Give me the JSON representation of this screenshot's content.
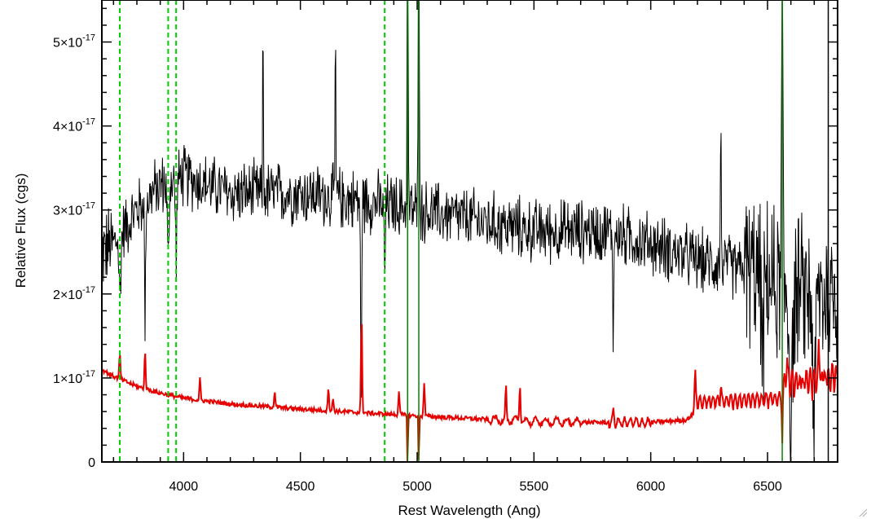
{
  "chart_data": {
    "type": "line",
    "title": "",
    "xlabel": "Rest Wavelength (Ang)",
    "ylabel": "Relative Flux (cgs)",
    "xlim": [
      3650,
      6800
    ],
    "ylim": [
      0,
      5.5e-17
    ],
    "x_ticks": [
      {
        "value": 4000,
        "label": "4000"
      },
      {
        "value": 4500,
        "label": "4500"
      },
      {
        "value": 5000,
        "label": "5000"
      },
      {
        "value": 5500,
        "label": "5500"
      },
      {
        "value": 6000,
        "label": "6000"
      },
      {
        "value": 6500,
        "label": "6500"
      }
    ],
    "y_ticks": [
      {
        "value": 0,
        "label": "0"
      },
      {
        "value": 1e-17,
        "label": "1×10",
        "exp": "-17"
      },
      {
        "value": 2e-17,
        "label": "2×10",
        "exp": "-17"
      },
      {
        "value": 3e-17,
        "label": "3×10",
        "exp": "-17"
      },
      {
        "value": 4e-17,
        "label": "4×10",
        "exp": "-17"
      },
      {
        "value": 5e-17,
        "label": "5×10",
        "exp": "-17"
      }
    ],
    "series": [
      {
        "color": "#000000",
        "style": "noisy spectrum",
        "continuum": [
          [
            3650,
            2.5e-17
          ],
          [
            3700,
            2.6e-17
          ],
          [
            3800,
            3e-17
          ],
          [
            3900,
            3.3e-17
          ],
          [
            4000,
            3.4e-17
          ],
          [
            4200,
            3.2e-17
          ],
          [
            4500,
            3.2e-17
          ],
          [
            4800,
            3.1e-17
          ],
          [
            5000,
            3e-17
          ],
          [
            5200,
            2.9e-17
          ],
          [
            5500,
            2.75e-17
          ],
          [
            5800,
            2.75e-17
          ],
          [
            6000,
            2.6e-17
          ],
          [
            6200,
            2.4e-17
          ],
          [
            6400,
            2.3e-17
          ],
          [
            6600,
            2e-17
          ],
          [
            6800,
            2e-17
          ]
        ],
        "features": [
          {
            "x": 3727,
            "dy": -7e-18,
            "w": 6
          },
          {
            "x": 3835,
            "dy": -1.5e-17,
            "w": 3
          },
          {
            "x": 3934,
            "dy": -1e-17,
            "w": 5
          },
          {
            "x": 3968,
            "dy": -8e-18,
            "w": 5
          },
          {
            "x": 4340,
            "dy": 2.2e-17,
            "w": 2
          },
          {
            "x": 4650,
            "dy": 2.2e-17,
            "w": 2
          },
          {
            "x": 4760,
            "dy": -2.7e-17,
            "w": 3
          },
          {
            "x": 4861,
            "dy": -8e-18,
            "w": 4
          },
          {
            "x": 4959,
            "dy": 3.5e-17,
            "w": 3
          },
          {
            "x": 5007,
            "dy": 4e-17,
            "w": 3
          },
          {
            "x": 5840,
            "dy": -1.2e-17,
            "w": 3
          },
          {
            "x": 6300,
            "dy": 1.5e-17,
            "w": 3
          },
          {
            "x": 6480,
            "dy": -1e-17,
            "w": 6
          },
          {
            "x": 6563,
            "dy": 3.5e-17,
            "w": 4
          },
          {
            "x": 6600,
            "dy": -1.5e-17,
            "w": 8
          },
          {
            "x": 6700,
            "dy": -1.5e-17,
            "w": 8
          }
        ]
      },
      {
        "color": "#e60000",
        "style": "smooth continuum",
        "continuum": [
          [
            3650,
            1.1e-17
          ],
          [
            3700,
            1.02e-17
          ],
          [
            3800,
            9e-18
          ],
          [
            3900,
            8.2e-18
          ],
          [
            4000,
            7.6e-18
          ],
          [
            4200,
            6.9e-18
          ],
          [
            4500,
            6.3e-18
          ],
          [
            4800,
            5.8e-18
          ],
          [
            5000,
            5.5e-18
          ],
          [
            5200,
            5.2e-18
          ],
          [
            5500,
            4.8e-18
          ],
          [
            5800,
            4.7e-18
          ],
          [
            6000,
            4.7e-18
          ],
          [
            6150,
            5e-18
          ],
          [
            6200,
            6e-18
          ],
          [
            6400,
            6.2e-18
          ],
          [
            6550,
            6.5e-18
          ],
          [
            6800,
            7.5e-18
          ]
        ],
        "lines": [
          {
            "x": 3727,
            "h": 3e-18
          },
          {
            "x": 3835,
            "h": 4.5e-18
          },
          {
            "x": 4070,
            "h": 2.5e-18
          },
          {
            "x": 4390,
            "h": 2e-18
          },
          {
            "x": 4620,
            "h": 3e-18
          },
          {
            "x": 4640,
            "h": 1.5e-18
          },
          {
            "x": 4762,
            "h": 1.15e-17
          },
          {
            "x": 4922,
            "h": 3e-18
          },
          {
            "x": 4959,
            "h": -6.5e-18
          },
          {
            "x": 5007,
            "h": -6.5e-18
          },
          {
            "x": 5030,
            "h": 4e-18
          },
          {
            "x": 5380,
            "h": 4e-18
          },
          {
            "x": 5440,
            "h": 4.5e-18
          },
          {
            "x": 5840,
            "h": 1.5e-18
          },
          {
            "x": 6190,
            "h": 3.5e-18
          },
          {
            "x": 6300,
            "h": 2e-18
          },
          {
            "x": 6563,
            "h": -6.5e-18
          },
          {
            "x": 6583,
            "h": 3.5e-18
          },
          {
            "x": 6720,
            "h": 4e-18
          }
        ]
      }
    ],
    "vertical_markers": [
      {
        "x": 3727,
        "color": "#00cc00",
        "style": "dashed"
      },
      {
        "x": 3934,
        "color": "#00cc00",
        "style": "dashed"
      },
      {
        "x": 3968,
        "color": "#00cc00",
        "style": "dashed"
      },
      {
        "x": 4861,
        "color": "#00cc00",
        "style": "dashed"
      },
      {
        "x": 4959,
        "color": "#008800",
        "style": "solid"
      },
      {
        "x": 5007,
        "color": "#008800",
        "style": "solid"
      },
      {
        "x": 6563,
        "color": "#008800",
        "style": "solid"
      },
      {
        "x": 6760,
        "color": "#000000",
        "style": "solid"
      }
    ],
    "grid": false,
    "legend": "none"
  }
}
